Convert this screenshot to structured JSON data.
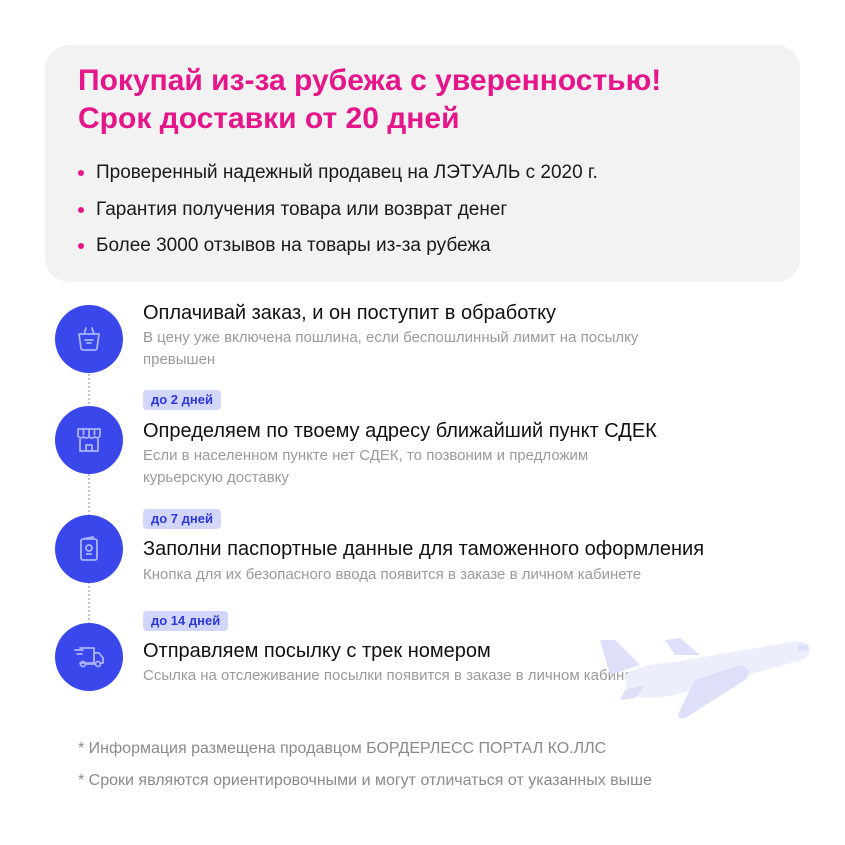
{
  "header": {
    "title_line1": "Покупай из-за рубежа с уверенностью!",
    "title_line2": "Срок доставки от 20 дней",
    "bullets": [
      "Проверенный надежный продавец на ЛЭТУАЛЬ с 2020 г.",
      "Гарантия получения товара или возврат денег",
      "Более 3000 отзывов на товары из-за рубежа"
    ]
  },
  "steps": [
    {
      "icon": "basket-icon",
      "title": "Оплачивай заказ, и он поступит в обработку",
      "subtitle": "В цену уже включена пошлина, если беспошлинный лимит на посылку превышен"
    },
    {
      "badge": "до 2 дней",
      "icon": "store-icon",
      "title": "Определяем по твоему адресу ближайший пункт СДЕК",
      "subtitle": "Если в населенном пункте нет СДЕК, то позвоним и предложим курьерскую доставку"
    },
    {
      "badge": "до 7 дней",
      "icon": "passport-icon",
      "title": "Заполни паспортные данные для таможенного оформления",
      "subtitle": "Кнопка для их безопасного ввода появится в заказе в личном кабинете"
    },
    {
      "badge": "до 14 дней",
      "icon": "delivery-truck-icon",
      "title": "Отправляем посылку с трек номером",
      "subtitle": "Ссылка на отслеживание посылки появится в заказе в личном кабинете"
    }
  ],
  "footnotes": [
    "* Информация размещена продавцом БОРДЕРЛЕСС ПОРТАЛ КО.ЛЛС",
    "* Сроки являются ориентировочными и могут отличаться от указанных выше"
  ],
  "colors": {
    "accent": "#e4168a",
    "step": "#3a47ea",
    "badge_bg": "#d3d6fb",
    "badge_text": "#2d39d6"
  }
}
